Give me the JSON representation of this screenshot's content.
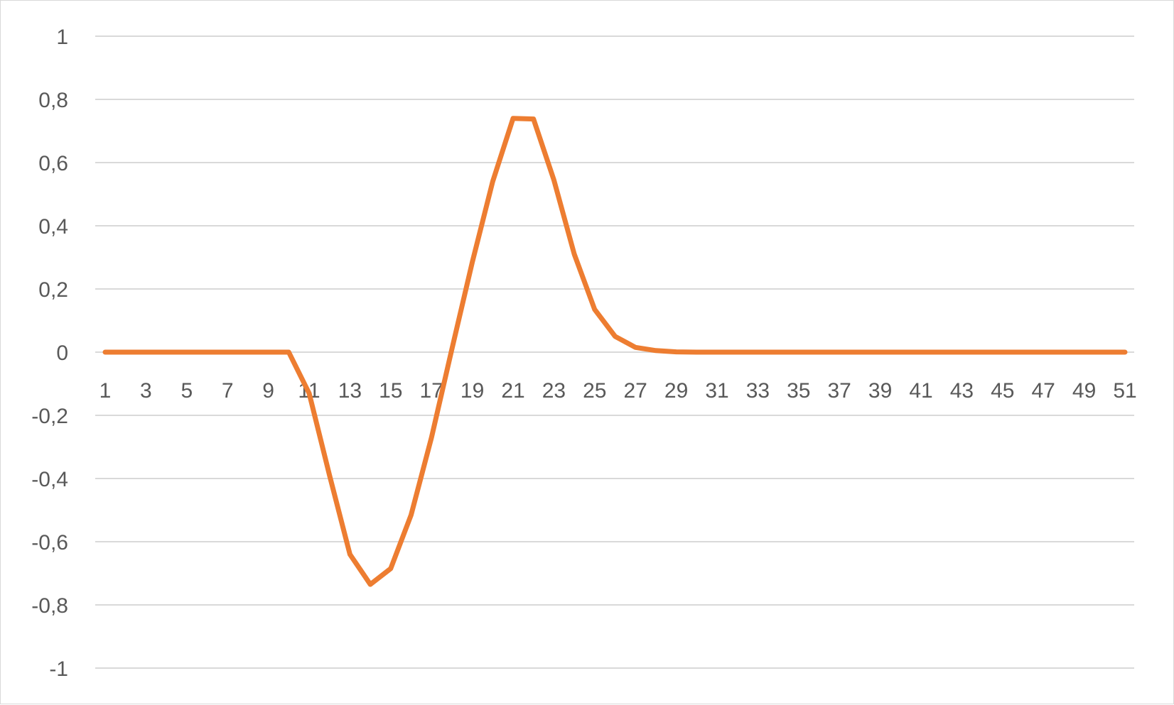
{
  "chart_data": {
    "type": "line",
    "title": "",
    "xlabel": "",
    "ylabel": "",
    "ylim": [
      -1,
      1
    ],
    "y_ticks": [
      1,
      0.8,
      0.6,
      0.4,
      0.2,
      0,
      -0.2,
      -0.4,
      -0.6,
      -0.8,
      -1
    ],
    "y_tick_labels": [
      "1",
      "0,8",
      "0,6",
      "0,4",
      "0,2",
      "0",
      "-0,2",
      "-0,4",
      "-0,6",
      "-0,8",
      "-1"
    ],
    "x_tick_labels": [
      "1",
      "3",
      "5",
      "7",
      "9",
      "11",
      "13",
      "15",
      "17",
      "19",
      "21",
      "23",
      "25",
      "27",
      "29",
      "31",
      "33",
      "35",
      "37",
      "39",
      "41",
      "43",
      "45",
      "47",
      "49",
      "51"
    ],
    "x": [
      1,
      2,
      3,
      4,
      5,
      6,
      7,
      8,
      9,
      10,
      11,
      12,
      13,
      14,
      15,
      16,
      17,
      18,
      19,
      20,
      21,
      22,
      23,
      24,
      25,
      26,
      27,
      28,
      29,
      30,
      31,
      32,
      33,
      34,
      35,
      36,
      37,
      38,
      39,
      40,
      41,
      42,
      43,
      44,
      45,
      46,
      47,
      48,
      49,
      50,
      51
    ],
    "grid": true,
    "legend": "none",
    "series": [
      {
        "color": "#ED7D31",
        "values": [
          0,
          0,
          0,
          0,
          0,
          0,
          0,
          0,
          0,
          0,
          -0.13,
          -0.39,
          -0.64,
          -0.735,
          -0.685,
          -0.515,
          -0.27,
          0.01,
          0.285,
          0.54,
          0.74,
          0.738,
          0.545,
          0.31,
          0.135,
          0.05,
          0.015,
          0.005,
          0.001,
          0,
          0,
          0,
          0,
          0,
          0,
          0,
          0,
          0,
          0,
          0,
          0,
          0,
          0,
          0,
          0,
          0,
          0,
          0,
          0,
          0,
          0
        ]
      }
    ]
  }
}
